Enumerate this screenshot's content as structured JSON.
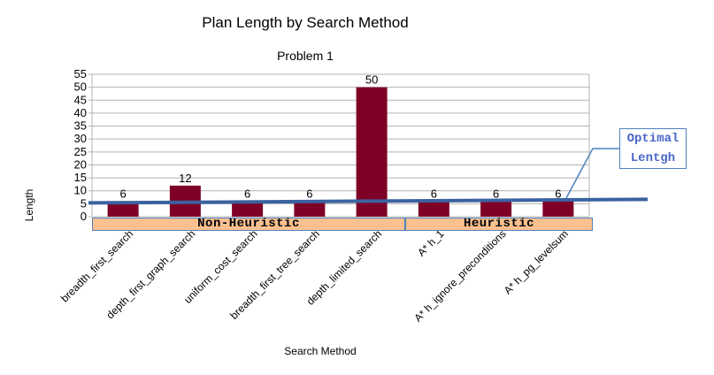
{
  "chart_data": {
    "type": "bar",
    "title": "Plan Length by Search Method",
    "subtitle": "Problem 1",
    "xlabel": "Search Method",
    "ylabel": "Length",
    "ylim": [
      0,
      55
    ],
    "yticks": [
      0,
      5,
      10,
      15,
      20,
      25,
      30,
      35,
      40,
      45,
      50,
      55
    ],
    "grid": true,
    "bar_color": "#7f0026",
    "categories": [
      "breadth_first_search",
      "depth_first_graph_search",
      "uniform_cost_search",
      "breadth_first_tree_search",
      "depth_limited_search",
      "A* h_1",
      "A* h_ignore_preconditions",
      "A* h_pg_levelsum"
    ],
    "values": [
      6,
      12,
      6,
      6,
      50,
      6,
      6,
      6
    ],
    "data_labels": [
      "6",
      "12",
      "6",
      "6",
      "50",
      "6",
      "6",
      "6"
    ],
    "reference_line": {
      "value": 6,
      "color": "#3b62a0"
    },
    "groups": [
      {
        "label": "Non-Heuristic",
        "categories": [
          0,
          4
        ]
      },
      {
        "label": "Heuristic",
        "categories": [
          5,
          7
        ]
      }
    ],
    "annotation": {
      "text_line1": "Optimal",
      "text_line2": "Lentgh",
      "color": "#4a66c9"
    }
  }
}
